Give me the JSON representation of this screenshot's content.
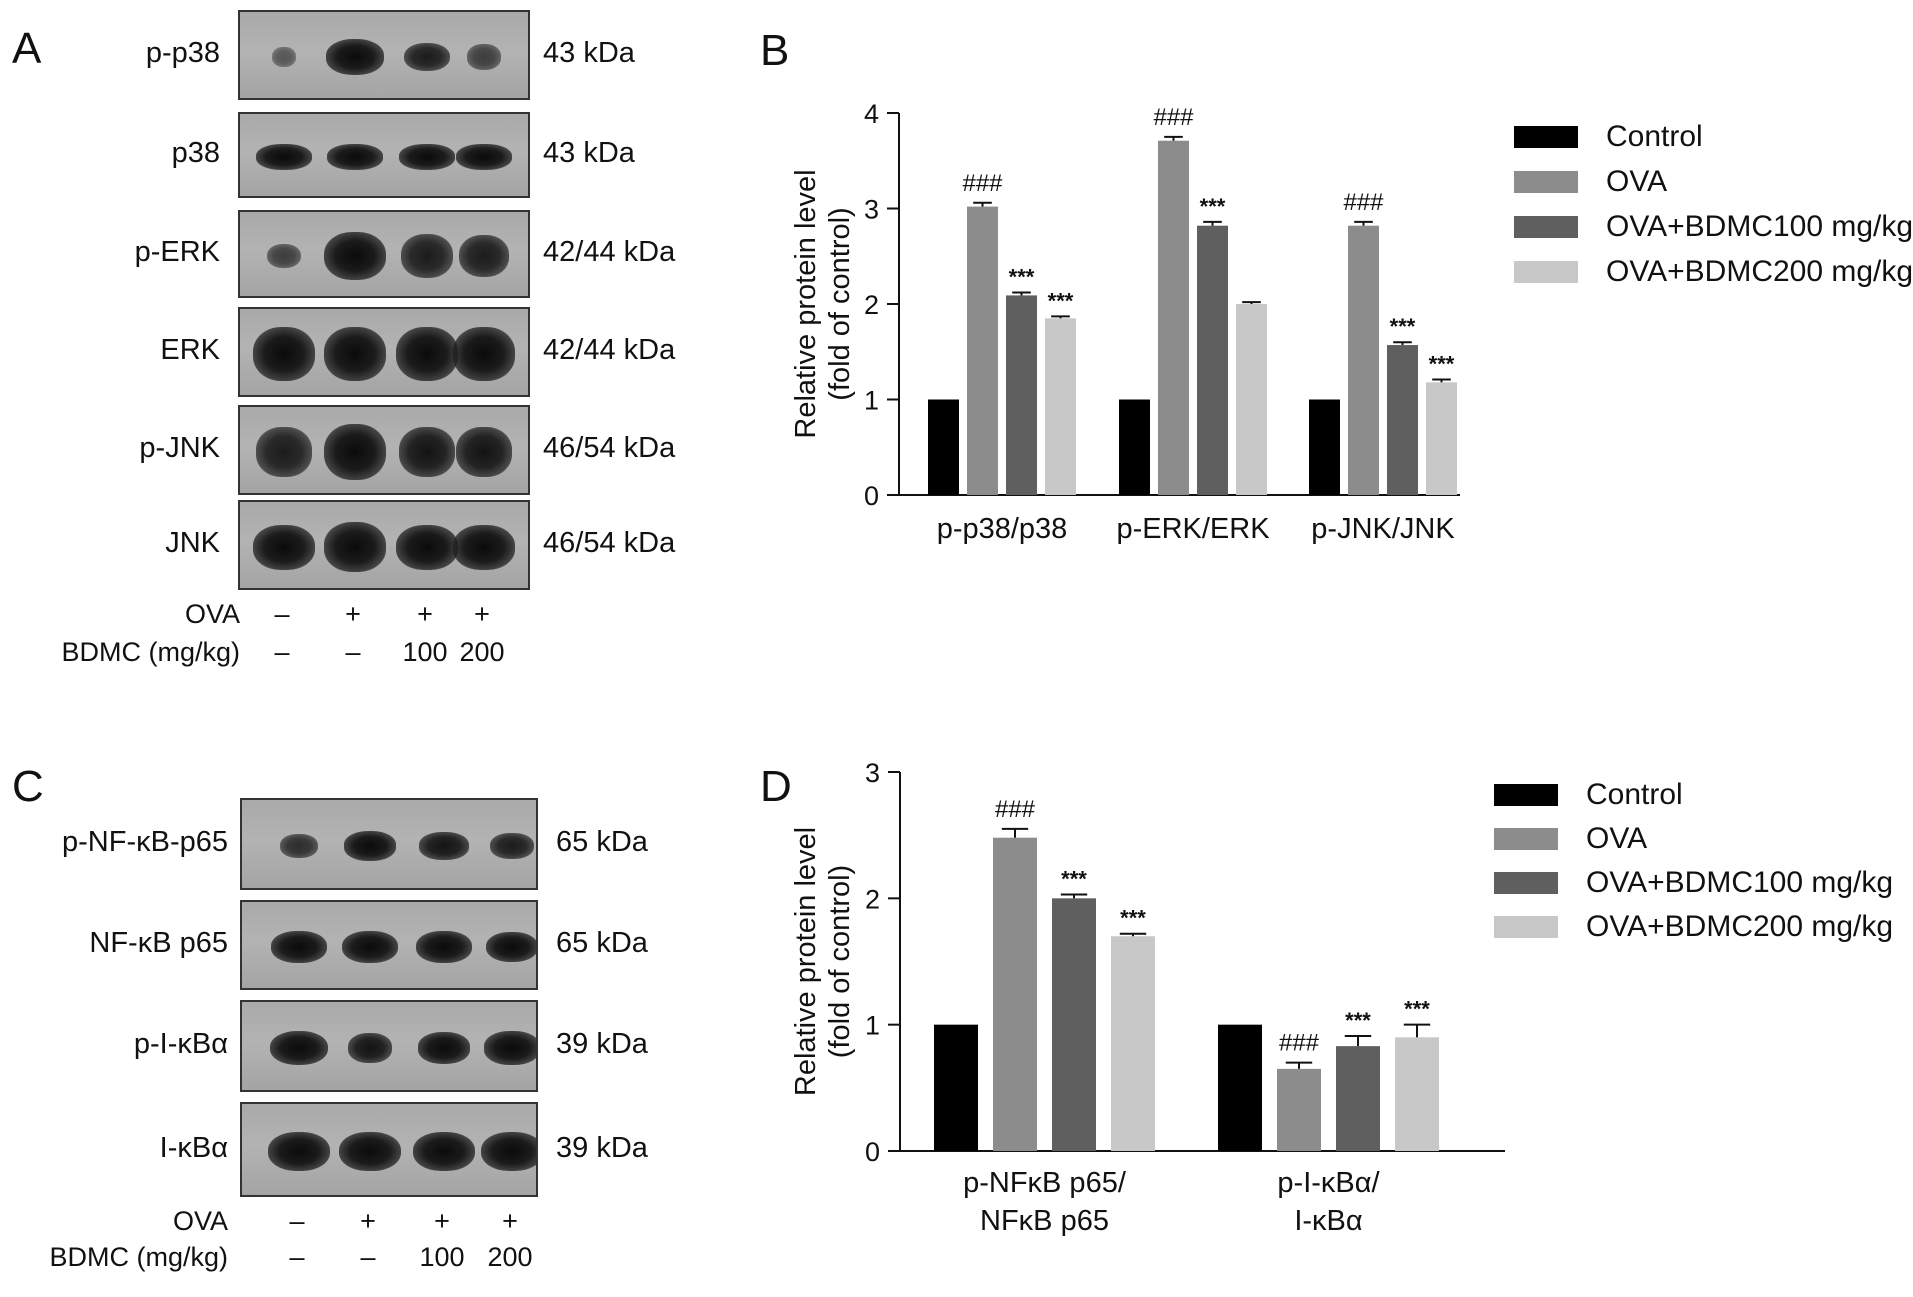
{
  "panels": {
    "A": {
      "letter": "A",
      "blots": [
        {
          "label": "p-p38",
          "kda": "43 kDa"
        },
        {
          "label": "p38",
          "kda": "43 kDa"
        },
        {
          "label": "p-ERK",
          "kda": "42/44 kDa"
        },
        {
          "label": "ERK",
          "kda": "42/44 kDa"
        },
        {
          "label": "p-JNK",
          "kda": "46/54 kDa"
        },
        {
          "label": "JNK",
          "kda": "46/54 kDa"
        }
      ],
      "conditions": {
        "ova_label": "OVA",
        "ova_values": [
          "–",
          "+",
          "+",
          "+"
        ],
        "bdmc_label": "BDMC (mg/kg)",
        "bdmc_values": [
          "–",
          "–",
          "100",
          "200"
        ]
      }
    },
    "C": {
      "letter": "C",
      "blots": [
        {
          "label": "p-NF-κB-p65",
          "kda": "65 kDa"
        },
        {
          "label": "NF-κB p65",
          "kda": "65 kDa"
        },
        {
          "label": "p-I-κBα",
          "kda": "39 kDa"
        },
        {
          "label": "I-κBα",
          "kda": "39 kDa"
        }
      ],
      "conditions": {
        "ova_label": "OVA",
        "ova_values": [
          "–",
          "+",
          "+",
          "+"
        ],
        "bdmc_label": "BDMC (mg/kg)",
        "bdmc_values": [
          "–",
          "–",
          "100",
          "200"
        ]
      }
    },
    "B": {
      "letter": "B"
    },
    "D": {
      "letter": "D"
    }
  },
  "colors": {
    "control": "#000000",
    "ova": "#8c8c8c",
    "ova_bdmc100": "#5f5f5f",
    "ova_bdmc200": "#c8c8c8"
  },
  "chart_data": [
    {
      "panel": "B",
      "type": "bar",
      "ylabel": "Relative protein level (fold of control)",
      "ylabel_lines": [
        "Relative protein level",
        "(fold of control)"
      ],
      "ylim": [
        0,
        4
      ],
      "yticks": [
        "0",
        "1",
        "2",
        "3",
        "4"
      ],
      "categories": [
        "p-p38/p38",
        "p-ERK/ERK",
        "p-JNK/JNK"
      ],
      "category_lines": [
        [
          "p-p38/p38"
        ],
        [
          "p-ERK/ERK"
        ],
        [
          "p-JNK/JNK"
        ]
      ],
      "legend": "right",
      "series": [
        {
          "name": "Control",
          "values": [
            1.0,
            1.0,
            1.0
          ],
          "errors": [
            0,
            0,
            0
          ],
          "annotations": [
            "",
            "",
            ""
          ]
        },
        {
          "name": "OVA",
          "values": [
            3.02,
            3.71,
            2.82
          ],
          "errors": [
            0.04,
            0.04,
            0.04
          ],
          "annotations": [
            "###",
            "###",
            "###"
          ]
        },
        {
          "name": "OVA+BDMC100 mg/kg",
          "values": [
            2.09,
            2.82,
            1.57
          ],
          "errors": [
            0.03,
            0.04,
            0.03
          ],
          "annotations": [
            "***",
            "***",
            "***"
          ]
        },
        {
          "name": "OVA+BDMC200 mg/kg",
          "values": [
            1.85,
            2.0,
            1.18
          ],
          "errors": [
            0.02,
            0.02,
            0.03
          ],
          "annotations": [
            "***",
            "",
            "***"
          ]
        }
      ]
    },
    {
      "panel": "D",
      "type": "bar",
      "ylabel": "Relative protein level (fold of control)",
      "ylabel_lines": [
        "Relative protein level",
        "(fold of control)"
      ],
      "ylim": [
        0,
        3
      ],
      "yticks": [
        "0",
        "1",
        "2",
        "3"
      ],
      "categories": [
        "p-NFκB p65/ NFκB p65",
        "p-I-κBα/ I-κBα"
      ],
      "category_lines": [
        [
          "p-NFκB p65/",
          "NFκB p65"
        ],
        [
          "p-I-κBα/",
          "I-κBα"
        ]
      ],
      "legend": "right",
      "series": [
        {
          "name": "Control",
          "values": [
            1.0,
            1.0
          ],
          "errors": [
            0,
            0
          ],
          "annotations": [
            "",
            ""
          ]
        },
        {
          "name": "OVA",
          "values": [
            2.48,
            0.65
          ],
          "errors": [
            0.07,
            0.05
          ],
          "annotations": [
            "###",
            "###"
          ]
        },
        {
          "name": "OVA+BDMC100 mg/kg",
          "values": [
            2.0,
            0.83
          ],
          "errors": [
            0.03,
            0.08
          ],
          "annotations": [
            "***",
            "***"
          ]
        },
        {
          "name": "OVA+BDMC200 mg/kg",
          "values": [
            1.7,
            0.9
          ],
          "errors": [
            0.02,
            0.1
          ],
          "annotations": [
            "***",
            "***"
          ]
        }
      ]
    }
  ]
}
